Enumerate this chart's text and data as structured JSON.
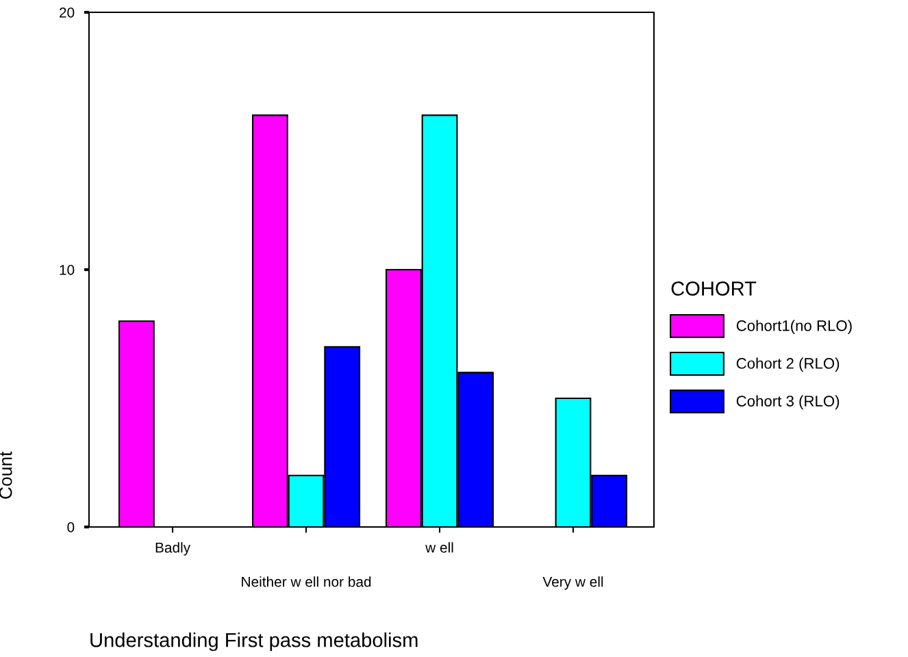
{
  "chart_data": {
    "type": "bar",
    "xlabel": "Understanding First pass metabolism",
    "ylabel": "Count",
    "legend_title": "COHORT",
    "categories": [
      "Badly",
      "Neither w ell nor bad",
      "w ell",
      "Very w ell"
    ],
    "series": [
      {
        "name": "Cohort1(no RLO)",
        "color": "#ff00ff",
        "values": [
          8,
          16,
          10,
          0
        ]
      },
      {
        "name": "Cohort 2 (RLO)",
        "color": "#00ffff",
        "values": [
          0,
          2,
          16,
          5
        ]
      },
      {
        "name": "Cohort 3 (RLO)",
        "color": "#0000ff",
        "values": [
          0,
          7,
          6,
          2
        ]
      }
    ],
    "ylim": [
      0,
      20
    ],
    "yticks": [
      0,
      10,
      20
    ],
    "grid": false,
    "legend": "right"
  }
}
